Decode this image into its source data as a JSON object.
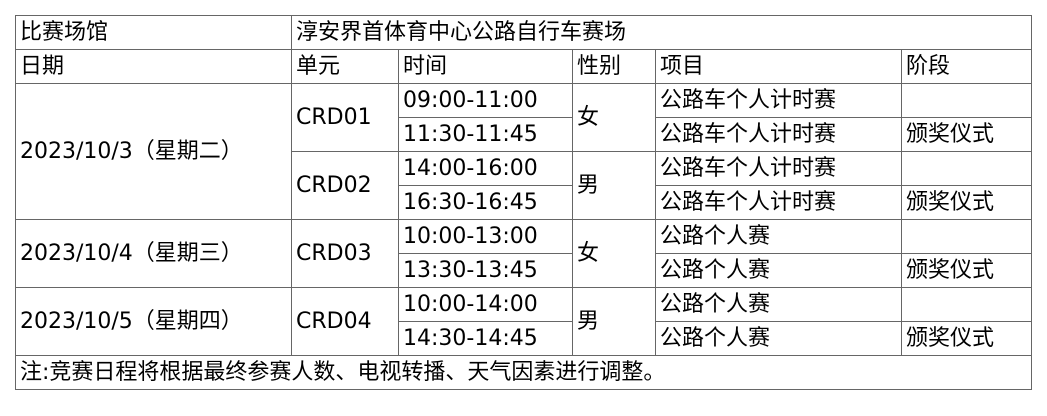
{
  "venue": {
    "label": "比赛场馆",
    "value": "淳安界首体育中心公路自行车赛场"
  },
  "headers": [
    "日期",
    "单元",
    "时间",
    "性别",
    "项目",
    "阶段"
  ],
  "days": [
    {
      "date": "2023/10/3（星期二）",
      "units": [
        {
          "unit": "CRD01",
          "gender": "女",
          "slots": [
            {
              "time": "09:00-11:00",
              "event": "公路车个人计时赛",
              "stage": ""
            },
            {
              "time": "11:30-11:45",
              "event": "公路车个人计时赛",
              "stage": "颁奖仪式"
            }
          ]
        },
        {
          "unit": "CRD02",
          "gender": "男",
          "slots": [
            {
              "time": "14:00-16:00",
              "event": "公路车个人计时赛",
              "stage": ""
            },
            {
              "time": "16:30-16:45",
              "event": "公路车个人计时赛",
              "stage": "颁奖仪式"
            }
          ]
        }
      ]
    },
    {
      "date": "2023/10/4（星期三）",
      "units": [
        {
          "unit": "CRD03",
          "gender": "女",
          "slots": [
            {
              "time": "10:00-13:00",
              "event": "公路个人赛",
              "stage": ""
            },
            {
              "time": "13:30-13:45",
              "event": "公路个人赛",
              "stage": "颁奖仪式"
            }
          ]
        }
      ]
    },
    {
      "date": "2023/10/5（星期四）",
      "units": [
        {
          "unit": "CRD04",
          "gender": "男",
          "slots": [
            {
              "time": "10:00-14:00",
              "event": "公路个人赛",
              "stage": ""
            },
            {
              "time": "14:30-14:45",
              "event": "公路个人赛",
              "stage": "颁奖仪式"
            }
          ]
        }
      ]
    }
  ],
  "note": "注:竞赛日程将根据最终参赛人数、电视转播、天气因素进行调整。"
}
